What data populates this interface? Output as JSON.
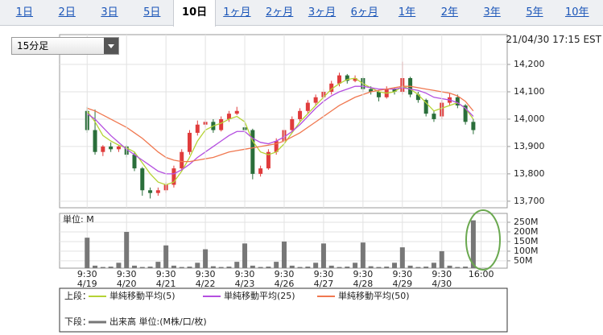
{
  "tabs": {
    "items": [
      "1日",
      "2日",
      "3日",
      "5日",
      "10日",
      "1ヶ月",
      "2ヶ月",
      "3ヶ月",
      "6ヶ月",
      "1年",
      "2年",
      "3年",
      "5年",
      "10年"
    ],
    "active": 4
  },
  "interval_select": "15分足",
  "timestamp": "21/04/30 17:15 EST",
  "chart_data": [
    {
      "type": "candlestick",
      "legend_label": "上段：",
      "xlim": [
        -3.5,
        53.3
      ],
      "ylim": [
        13676,
        14309
      ],
      "yticks": [
        {
          "value": 13700,
          "label": "13,700"
        },
        {
          "value": 13800,
          "label": "13,800"
        },
        {
          "value": 13900,
          "label": "13,900"
        },
        {
          "value": 14000,
          "label": "14,000"
        },
        {
          "value": 14100,
          "label": "14,100"
        },
        {
          "value": 14200,
          "label": "14,200"
        }
      ],
      "up_color": "#e03c3c",
      "down_color": "#2a6e3a",
      "x": [
        0,
        1,
        2,
        3,
        4,
        5,
        6,
        7,
        8,
        9,
        10,
        11,
        12,
        13,
        14,
        15,
        16,
        17,
        18,
        19,
        20,
        21,
        22,
        23,
        24,
        25,
        26,
        27,
        28,
        29,
        30,
        31,
        32,
        33,
        34,
        35,
        36,
        37,
        38,
        39,
        40,
        41,
        42,
        43,
        44,
        45,
        46,
        47,
        48,
        49
      ],
      "open": [
        14030,
        13960,
        13880,
        13900,
        13890,
        13900,
        13870,
        13820,
        13740,
        13730,
        13740,
        13760,
        13820,
        13880,
        13950,
        13980,
        13990,
        13960,
        14000,
        14020,
        13970,
        13960,
        13800,
        13820,
        13880,
        13920,
        13960,
        14000,
        14030,
        14060,
        14080,
        14100,
        14130,
        14160,
        14140,
        14150,
        14110,
        14100,
        14080,
        14110,
        14100,
        14150,
        14090,
        14070,
        14020,
        14010,
        14060,
        14080,
        14050,
        13990
      ],
      "high": [
        14045,
        14035,
        13905,
        13915,
        13905,
        13905,
        13880,
        13825,
        13750,
        13750,
        13770,
        13830,
        13890,
        13960,
        13995,
        14000,
        14000,
        14010,
        14030,
        14045,
        14035,
        13965,
        13830,
        13890,
        13930,
        13970,
        14010,
        14040,
        14070,
        14090,
        14110,
        14140,
        14170,
        14165,
        14160,
        14155,
        14120,
        14105,
        14120,
        14115,
        14210,
        14155,
        14100,
        14075,
        14030,
        14070,
        14095,
        14090,
        14055,
        14000
      ],
      "low": [
        13950,
        13870,
        13865,
        13880,
        13880,
        13860,
        13810,
        13720,
        13710,
        13720,
        13730,
        13750,
        13810,
        13870,
        13940,
        13970,
        13950,
        13955,
        13990,
        14015,
        13950,
        13780,
        13790,
        13815,
        13870,
        13910,
        13950,
        13990,
        14020,
        14050,
        14075,
        14090,
        14120,
        14130,
        14135,
        14100,
        14090,
        14065,
        14075,
        14090,
        14090,
        14080,
        14060,
        14010,
        13990,
        14000,
        14050,
        14040,
        13980,
        13945
      ],
      "close": [
        13960,
        13880,
        13900,
        13890,
        13900,
        13870,
        13820,
        13740,
        13730,
        13740,
        13760,
        13820,
        13880,
        13950,
        13980,
        13990,
        13960,
        14000,
        14020,
        14030,
        13960,
        13800,
        13820,
        13880,
        13920,
        13960,
        14000,
        14030,
        14060,
        14080,
        14100,
        14130,
        14160,
        14140,
        14150,
        14110,
        14100,
        14080,
        14110,
        14100,
        14150,
        14090,
        14070,
        14020,
        14000,
        14060,
        14080,
        14050,
        13990,
        13960
      ],
      "series": [
        {
          "name": "単純移動平均(5)",
          "color": "#b5d335",
          "values": [
            14030,
            13990,
            13940,
            13920,
            13905,
            13895,
            13880,
            13840,
            13800,
            13770,
            13760,
            13770,
            13810,
            13860,
            13920,
            13960,
            13975,
            13985,
            14000,
            14010,
            13990,
            13920,
            13880,
            13870,
            13880,
            13910,
            13950,
            13990,
            14020,
            14050,
            14080,
            14110,
            14130,
            14145,
            14150,
            14130,
            14115,
            14100,
            14095,
            14100,
            14120,
            14110,
            14090,
            14060,
            14030,
            14040,
            14050,
            14060,
            14040,
            14000
          ]
        },
        {
          "name": "単純移動平均(25)",
          "color": "#b44fe0",
          "values": [
            14020,
            14000,
            13970,
            13940,
            13915,
            13890,
            13870,
            13850,
            13830,
            13810,
            13800,
            13800,
            13815,
            13835,
            13860,
            13880,
            13900,
            13920,
            13940,
            13955,
            13955,
            13930,
            13915,
            13910,
            13920,
            13935,
            13955,
            13980,
            14010,
            14040,
            14065,
            14085,
            14100,
            14110,
            14120,
            14120,
            14115,
            14110,
            14110,
            14110,
            14115,
            14110,
            14105,
            14095,
            14080,
            14075,
            14070,
            14060,
            14040,
            14010
          ]
        },
        {
          "name": "単純移動平均(50)",
          "color": "#f07850",
          "values": [
            14040,
            14030,
            14015,
            14000,
            13985,
            13970,
            13950,
            13930,
            13905,
            13880,
            13860,
            13850,
            13845,
            13845,
            13850,
            13855,
            13860,
            13870,
            13880,
            13885,
            13890,
            13895,
            13900,
            13905,
            13910,
            13920,
            13935,
            13950,
            13970,
            13990,
            14010,
            14030,
            14050,
            14065,
            14080,
            14090,
            14100,
            14105,
            14110,
            14115,
            14120,
            14120,
            14115,
            14110,
            14105,
            14100,
            14095,
            14085,
            14065,
            14030
          ]
        }
      ]
    },
    {
      "type": "bar",
      "label": "単位: M",
      "legend_label": "下段：",
      "name": "出来高 単位:(M株/口/枚)",
      "color": "#777777",
      "xlim": [
        -3.5,
        53.3
      ],
      "ylim": [
        12,
        296
      ],
      "yticks": [
        {
          "value": 50,
          "label": "50M"
        },
        {
          "value": 100,
          "label": "100M"
        },
        {
          "value": 150,
          "label": "150M"
        },
        {
          "value": 200,
          "label": "200M"
        },
        {
          "value": 250,
          "label": "250M"
        }
      ],
      "xticks": [
        {
          "value": 0,
          "label": "9:30"
        },
        {
          "value": 5,
          "label": "9:30"
        },
        {
          "value": 10,
          "label": "9:30"
        },
        {
          "value": 15,
          "label": "9:30"
        },
        {
          "value": 20,
          "label": "9:30"
        },
        {
          "value": 25,
          "label": "9:30"
        },
        {
          "value": 30,
          "label": "9:30"
        },
        {
          "value": 35,
          "label": "9:30"
        },
        {
          "value": 40,
          "label": "9:30"
        },
        {
          "value": 45,
          "label": "9:30"
        },
        {
          "value": 50,
          "label": "16:00"
        }
      ],
      "xtick_dates": [
        "4/19",
        "4/20",
        "4/21",
        "4/22",
        "4/23",
        "4/26",
        "4/27",
        "4/28",
        "4/29",
        "4/30",
        null
      ],
      "x": [
        0,
        1,
        2,
        3,
        4,
        5,
        6,
        7,
        8,
        9,
        10,
        11,
        12,
        13,
        14,
        15,
        16,
        17,
        18,
        19,
        20,
        21,
        22,
        23,
        24,
        25,
        26,
        27,
        28,
        29,
        30,
        31,
        32,
        33,
        34,
        35,
        36,
        37,
        38,
        39,
        40,
        41,
        42,
        43,
        44,
        45,
        46,
        47,
        48,
        49
      ],
      "values": [
        170,
        25,
        18,
        20,
        40,
        200,
        25,
        18,
        20,
        45,
        130,
        25,
        18,
        20,
        40,
        110,
        22,
        18,
        20,
        45,
        140,
        25,
        18,
        20,
        45,
        150,
        25,
        18,
        20,
        40,
        140,
        25,
        18,
        20,
        40,
        145,
        22,
        18,
        20,
        40,
        120,
        25,
        18,
        20,
        40,
        100,
        25,
        18,
        20,
        260
      ]
    }
  ]
}
